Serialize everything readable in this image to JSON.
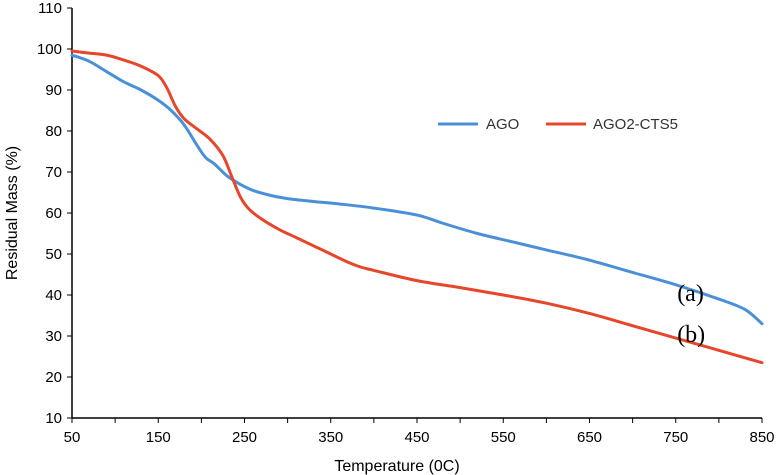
{
  "chart_data": {
    "type": "line",
    "title": "",
    "xlabel": "Temperature (0C)",
    "ylabel": "Residual Mass (%)",
    "xlim": [
      50,
      850
    ],
    "ylim": [
      10,
      110
    ],
    "x_ticks": [
      50,
      150,
      250,
      350,
      450,
      550,
      650,
      750,
      850
    ],
    "y_ticks": [
      10,
      20,
      30,
      40,
      50,
      60,
      70,
      80,
      90,
      100,
      110
    ],
    "grid": false,
    "legend_position": "upper-right-inside",
    "series": [
      {
        "name": "AGO",
        "color": "#4A90D9",
        "x": [
          50,
          70,
          90,
          110,
          130,
          150,
          165,
          180,
          195,
          205,
          215,
          230,
          245,
          260,
          280,
          300,
          330,
          360,
          400,
          450,
          480,
          520,
          560,
          600,
          650,
          700,
          750,
          800,
          830,
          850
        ],
        "y": [
          98.5,
          97.0,
          94.5,
          92.0,
          90.0,
          87.5,
          85.0,
          81.5,
          76.5,
          73.5,
          72.0,
          69.0,
          67.0,
          65.5,
          64.3,
          63.5,
          62.8,
          62.2,
          61.2,
          59.5,
          57.5,
          55.0,
          53.0,
          51.0,
          48.5,
          45.5,
          42.5,
          39.0,
          36.5,
          33.0
        ]
      },
      {
        "name": "AGO2-CTS5",
        "color": "#E8462A",
        "x": [
          50,
          70,
          90,
          110,
          130,
          150,
          160,
          170,
          180,
          195,
          210,
          225,
          235,
          245,
          255,
          270,
          290,
          310,
          330,
          350,
          370,
          385,
          400,
          450,
          500,
          550,
          600,
          650,
          700,
          750,
          800,
          850
        ],
        "y": [
          99.5,
          99.0,
          98.5,
          97.3,
          95.8,
          93.5,
          90.5,
          86.0,
          83.0,
          80.5,
          78.0,
          74.0,
          69.0,
          64.0,
          61.0,
          58.5,
          56.0,
          54.0,
          52.0,
          50.0,
          48.0,
          46.8,
          46.0,
          43.5,
          41.8,
          40.0,
          38.0,
          35.5,
          32.5,
          29.5,
          26.5,
          23.5
        ]
      }
    ],
    "annotations": [
      {
        "text": "(a)",
        "x": 805,
        "y": 40.5
      },
      {
        "text": "(b)",
        "x": 805,
        "y": 30.5
      }
    ]
  }
}
